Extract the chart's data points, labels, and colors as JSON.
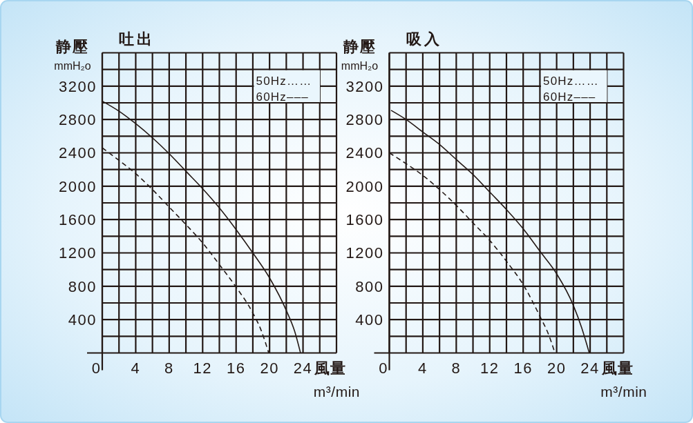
{
  "chart_data": [
    {
      "type": "line",
      "title": "吐出",
      "ylabel": "静壓\nmmH₂o",
      "xlabel": "風量\nm³/min",
      "xlim": [
        0,
        28
      ],
      "ylim": [
        0,
        3600
      ],
      "xticks": [
        0,
        {
          "value": 2,
          "label": null
        },
        4,
        {
          "value": 6,
          "label": null
        },
        8,
        {
          "value": 10,
          "label": null
        },
        12,
        {
          "value": 14,
          "label": null
        },
        16,
        {
          "value": 18,
          "label": null
        },
        20,
        {
          "value": 22,
          "label": null
        },
        24,
        {
          "value": 26,
          "label": null
        },
        {
          "value": 28,
          "label": null
        }
      ],
      "yticks": [
        {
          "value": 200,
          "label": null
        },
        400,
        {
          "value": 600,
          "label": null
        },
        800,
        {
          "value": 1000,
          "label": null
        },
        1200,
        {
          "value": 1400,
          "label": null
        },
        1600,
        {
          "value": 1800,
          "label": null
        },
        2000,
        {
          "value": 2200,
          "label": null
        },
        2400,
        {
          "value": 2600,
          "label": null
        },
        2800,
        {
          "value": 3000,
          "label": null
        },
        3200,
        {
          "value": 3400,
          "label": null
        },
        {
          "value": 3600,
          "label": null
        }
      ],
      "grid": true,
      "annotations": [
        "50Hz……",
        "60Hz–––"
      ],
      "series": [
        {
          "color": "#231815",
          "line_style": "solid",
          "x": [
            0,
            2,
            4,
            6,
            8,
            10,
            12,
            14,
            16,
            18,
            20,
            22,
            23,
            23.7
          ],
          "values": [
            3020,
            2900,
            2750,
            2580,
            2390,
            2180,
            1970,
            1740,
            1480,
            1200,
            900,
            510,
            260,
            0
          ]
        },
        {
          "color": "#231815",
          "line_style": "dashed",
          "x": [
            0,
            2,
            4,
            6,
            8,
            10,
            12,
            14,
            16,
            18,
            19,
            19.9
          ],
          "values": [
            2460,
            2310,
            2150,
            1960,
            1750,
            1540,
            1320,
            1060,
            790,
            480,
            270,
            0
          ]
        }
      ]
    },
    {
      "type": "line",
      "title": "吸入",
      "ylabel": "静壓\nmmH₂o",
      "xlabel": "風量\nm³/min",
      "xlim": [
        0,
        28
      ],
      "ylim": [
        0,
        3600
      ],
      "xticks": [
        0,
        {
          "value": 2,
          "label": null
        },
        4,
        {
          "value": 6,
          "label": null
        },
        8,
        {
          "value": 10,
          "label": null
        },
        12,
        {
          "value": 14,
          "label": null
        },
        16,
        {
          "value": 18,
          "label": null
        },
        20,
        {
          "value": 22,
          "label": null
        },
        24,
        {
          "value": 26,
          "label": null
        },
        {
          "value": 28,
          "label": null
        }
      ],
      "yticks": [
        {
          "value": 200,
          "label": null
        },
        400,
        {
          "value": 600,
          "label": null
        },
        800,
        {
          "value": 1000,
          "label": null
        },
        1200,
        {
          "value": 1400,
          "label": null
        },
        1600,
        {
          "value": 1800,
          "label": null
        },
        2000,
        {
          "value": 2200,
          "label": null
        },
        2400,
        {
          "value": 2600,
          "label": null
        },
        2800,
        {
          "value": 3000,
          "label": null
        },
        3200,
        {
          "value": 3400,
          "label": null
        },
        {
          "value": 3600,
          "label": null
        }
      ],
      "grid": true,
      "annotations": [
        "50Hz……",
        "60Hz–––"
      ],
      "series": [
        {
          "color": "#231815",
          "line_style": "solid",
          "x": [
            0.2,
            2,
            4,
            6,
            8,
            10,
            12,
            14,
            16,
            18,
            20,
            22,
            23,
            23.9
          ],
          "values": [
            2910,
            2800,
            2650,
            2500,
            2320,
            2140,
            1930,
            1720,
            1490,
            1220,
            950,
            570,
            300,
            0
          ]
        },
        {
          "color": "#231815",
          "line_style": "dashed",
          "x": [
            0,
            2,
            4,
            6,
            8,
            10,
            12,
            14,
            16,
            18,
            19,
            19.8
          ],
          "values": [
            2400,
            2270,
            2130,
            1960,
            1770,
            1560,
            1350,
            1100,
            820,
            440,
            230,
            0
          ]
        }
      ]
    }
  ]
}
